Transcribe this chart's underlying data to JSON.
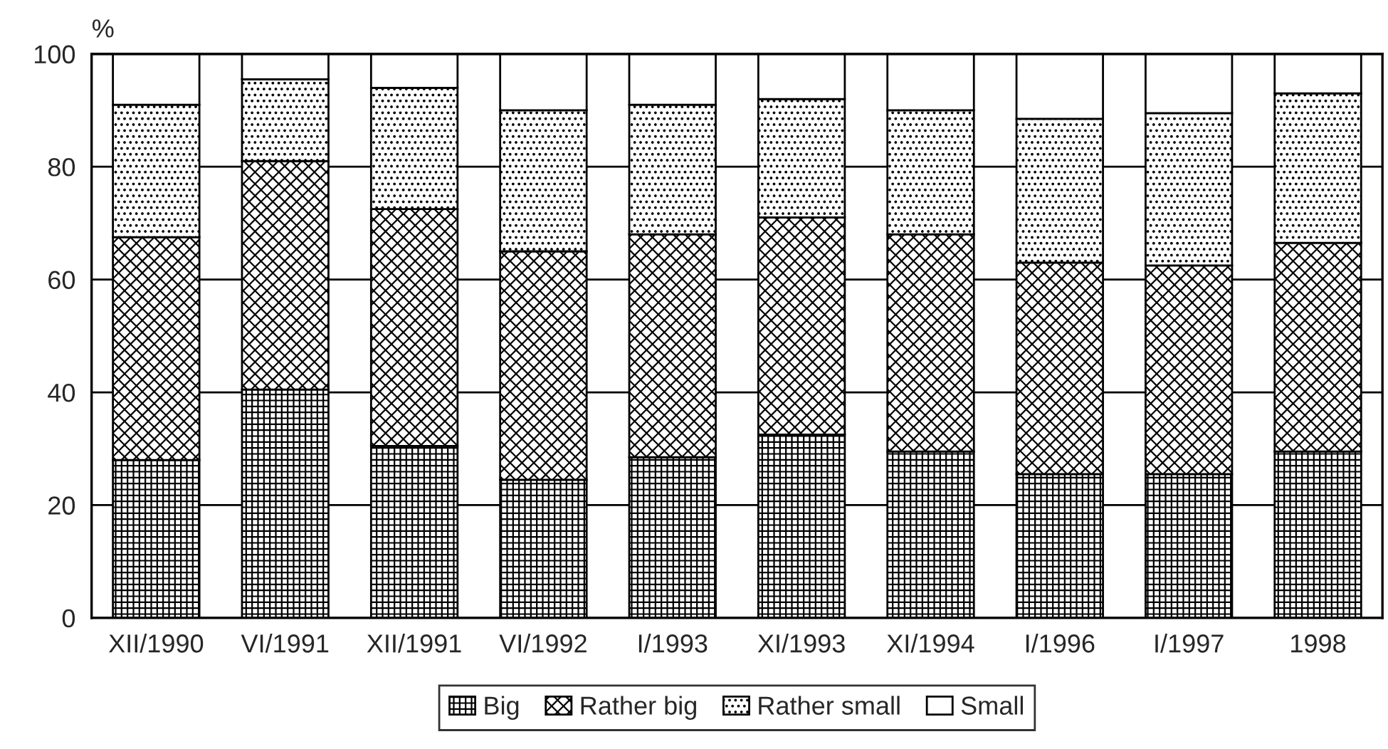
{
  "chart_data": {
    "type": "bar",
    "stacked": true,
    "ylabel": "%",
    "categories": [
      "XII/1990",
      "VI/1991",
      "XII/1991",
      "VI/1992",
      "I/1993",
      "XI/1993",
      "XI/1994",
      "I/1996",
      "I/1997",
      "1998"
    ],
    "series": [
      {
        "name": "Big",
        "color": "#000000",
        "values": [
          28,
          40.5,
          30.5,
          24.5,
          28.5,
          32.5,
          29.5,
          25.5,
          25.5,
          29.5
        ]
      },
      {
        "name": "Rather big",
        "color": "#000000",
        "values": [
          39.5,
          40.5,
          42,
          40.5,
          39.5,
          38.5,
          38.5,
          37.5,
          37,
          37
        ]
      },
      {
        "name": "Rather small",
        "color": "#000000",
        "values": [
          23.5,
          14.5,
          21.5,
          25,
          23,
          21,
          22,
          25.5,
          27,
          26.5
        ]
      },
      {
        "name": "Small",
        "color": "#ffffff",
        "values": [
          9,
          4.5,
          6,
          10,
          9,
          8,
          10,
          11.5,
          10.5,
          7
        ]
      }
    ],
    "ylim": [
      0,
      100
    ],
    "yticks": [
      0,
      20,
      40,
      60,
      80,
      100
    ],
    "grid": "y",
    "legend": "bottom"
  }
}
